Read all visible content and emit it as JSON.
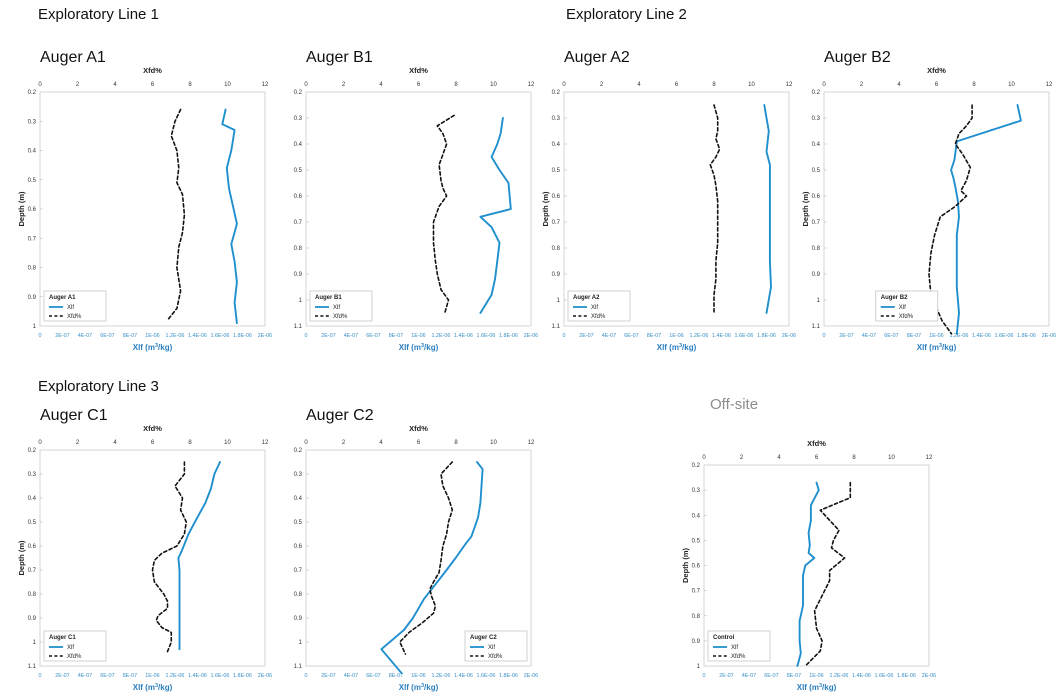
{
  "sections": {
    "line1": "Exploratory Line 1",
    "line2": "Exploratory Line 2",
    "line3": "Exploratory Line 3",
    "offsite": "Off-site"
  },
  "colors": {
    "xlf": "#1f8fce",
    "xfd": "#111111",
    "frame": "#d4d4d4",
    "grid": "#e6e6e6"
  },
  "chart_data": [
    {
      "type": "line",
      "key": "a1",
      "subtitle": "Auger A1",
      "top_axis": {
        "label": "Xfd%",
        "range": [
          0,
          12
        ],
        "ticks": [
          "0",
          "2",
          "4",
          "6",
          "8",
          "10",
          "12"
        ]
      },
      "bottom_axis": {
        "label": "Xlf (m3/kg)",
        "range": [
          0,
          2e-06
        ],
        "ticks": [
          "0",
          "2E-07",
          "4E-07",
          "6E-07",
          "8E-07",
          "1E-06",
          "1.2E-06",
          "1.4E-06",
          "1.6E-06",
          "1.8E-06",
          "2E-06"
        ]
      },
      "y_axis": {
        "label": "Depth (m)",
        "range": [
          0.2,
          1.0
        ],
        "ticks": [
          "0.2",
          "0.3",
          "0.4",
          "0.5",
          "0.6",
          "0.7",
          "0.8",
          "0.9",
          "1"
        ]
      },
      "legend": {
        "title": "Auger A1",
        "items": [
          "Xlf",
          "Xfd%"
        ],
        "position": "bottom-left"
      },
      "series": [
        {
          "name": "Xlf",
          "axis": "bottom",
          "style": "solid",
          "x": [
            1.65e-06,
            1.62e-06,
            1.73e-06,
            1.7e-06,
            1.66e-06,
            1.68e-06,
            1.75e-06,
            1.73e-06,
            1.7e-06,
            1.73e-06,
            1.75e-06,
            1.73e-06,
            1.75e-06
          ],
          "y": [
            0.26,
            0.31,
            0.33,
            0.4,
            0.46,
            0.53,
            0.65,
            0.68,
            0.72,
            0.78,
            0.85,
            0.92,
            0.99
          ]
        },
        {
          "name": "Xfd%",
          "axis": "top",
          "style": "dashed",
          "x": [
            7.5,
            7.2,
            7.0,
            7.3,
            7.4,
            7.3,
            7.6,
            7.7,
            7.6,
            7.4,
            7.3,
            7.5,
            7.3,
            6.8
          ],
          "y": [
            0.26,
            0.3,
            0.35,
            0.4,
            0.46,
            0.51,
            0.55,
            0.62,
            0.68,
            0.73,
            0.8,
            0.88,
            0.94,
            0.98
          ]
        }
      ]
    },
    {
      "type": "line",
      "key": "b1",
      "subtitle": "Auger B1",
      "top_axis": {
        "label": "Xfd%",
        "range": [
          0,
          12
        ],
        "ticks": [
          "0",
          "2",
          "4",
          "6",
          "8",
          "10",
          "12"
        ]
      },
      "bottom_axis": {
        "label": "Xlf (m3/kg)",
        "range": [
          0,
          2e-06
        ],
        "ticks": [
          "0",
          "2E-07",
          "4E-07",
          "6E-07",
          "8E-07",
          "1E-06",
          "1.2E-06",
          "1.4E-06",
          "1.6E-06",
          "1.8E-06",
          "2E-06"
        ]
      },
      "y_axis": {
        "label": "",
        "range": [
          0.2,
          1.1
        ],
        "ticks": [
          "0.2",
          "0.3",
          "0.4",
          "0.5",
          "0.6",
          "0.7",
          "0.8",
          "0.9",
          "1",
          "1.1"
        ]
      },
      "legend": {
        "title": "Auger B1",
        "items": [
          "Xlf",
          "Xfd%"
        ],
        "position": "bottom-left"
      },
      "series": [
        {
          "name": "Xlf",
          "axis": "bottom",
          "style": "solid",
          "x": [
            1.75e-06,
            1.73e-06,
            1.7e-06,
            1.65e-06,
            1.72e-06,
            1.8e-06,
            1.82e-06,
            1.55e-06,
            1.65e-06,
            1.72e-06,
            1.7e-06,
            1.68e-06,
            1.65e-06,
            1.55e-06
          ],
          "y": [
            0.3,
            0.36,
            0.4,
            0.45,
            0.5,
            0.55,
            0.65,
            0.68,
            0.72,
            0.78,
            0.85,
            0.92,
            0.98,
            1.05
          ]
        },
        {
          "name": "Xfd%",
          "axis": "top",
          "style": "dashed",
          "x": [
            7.9,
            7.0,
            7.3,
            7.5,
            7.3,
            7.1,
            7.2,
            7.3,
            7.5,
            7.1,
            6.8,
            6.8,
            6.9,
            7.0,
            7.2,
            7.6,
            7.4
          ],
          "y": [
            0.29,
            0.33,
            0.36,
            0.4,
            0.44,
            0.48,
            0.54,
            0.57,
            0.6,
            0.64,
            0.7,
            0.78,
            0.85,
            0.9,
            0.96,
            1.0,
            1.05
          ]
        }
      ]
    },
    {
      "type": "line",
      "key": "a2",
      "subtitle": "Auger A2",
      "top_axis": {
        "label": "",
        "range": [
          0,
          12
        ],
        "ticks": [
          "0",
          "2",
          "4",
          "6",
          "8",
          "10",
          "12"
        ]
      },
      "bottom_axis": {
        "label": "Xlf (m3/kg)",
        "range": [
          0,
          2e-06
        ],
        "ticks": [
          "0",
          "2E-07",
          "4E-07",
          "6E-07",
          "8E-07",
          "1E-06",
          "1.2E-06",
          "1.4E-06",
          "1.6E-06",
          "1.8E-06",
          "2E-06"
        ]
      },
      "y_axis": {
        "label": "Depth (m)",
        "range": [
          0.2,
          1.1
        ],
        "ticks": [
          "0.2",
          "0.3",
          "0.4",
          "0.5",
          "0.6",
          "0.7",
          "0.8",
          "0.9",
          "1",
          "1.1"
        ]
      },
      "legend": {
        "title": "Auger A2",
        "items": [
          "Xlf",
          "Xfd%"
        ],
        "position": "bottom-left"
      },
      "series": [
        {
          "name": "Xlf",
          "axis": "bottom",
          "style": "solid",
          "x": [
            1.78e-06,
            1.8e-06,
            1.82e-06,
            1.8e-06,
            1.83e-06,
            1.83e-06,
            1.83e-06,
            1.83e-06,
            1.83e-06,
            1.84e-06,
            1.8e-06
          ],
          "y": [
            0.25,
            0.3,
            0.35,
            0.43,
            0.48,
            0.55,
            0.65,
            0.75,
            0.85,
            0.95,
            1.05
          ]
        },
        {
          "name": "Xfd%",
          "axis": "top",
          "style": "dashed",
          "x": [
            8.0,
            8.2,
            8.2,
            8.1,
            8.3,
            8.1,
            7.8,
            8.0,
            8.1,
            8.2,
            8.2,
            8.2,
            8.1,
            8.1,
            8.0,
            8.0
          ],
          "y": [
            0.25,
            0.3,
            0.35,
            0.38,
            0.42,
            0.45,
            0.48,
            0.52,
            0.56,
            0.62,
            0.7,
            0.78,
            0.85,
            0.92,
            0.98,
            1.05
          ]
        }
      ]
    },
    {
      "type": "line",
      "key": "b2",
      "subtitle": "Auger B2",
      "top_axis": {
        "label": "Xfd%",
        "range": [
          0,
          12
        ],
        "ticks": [
          "0",
          "2",
          "4",
          "6",
          "8",
          "10",
          "12"
        ]
      },
      "bottom_axis": {
        "label": "Xlf (m3/kg)",
        "range": [
          0,
          2e-06
        ],
        "ticks": [
          "0",
          "2E-07",
          "4E-07",
          "6E-07",
          "8E-07",
          "1E-06",
          "1.2E-06",
          "1.4E-06",
          "1.6E-06",
          "1.8E-06",
          "2E-06"
        ]
      },
      "y_axis": {
        "label": "Depth (m)",
        "range": [
          0.2,
          1.1
        ],
        "ticks": [
          "0.2",
          "0.3",
          "0.4",
          "0.5",
          "0.6",
          "0.7",
          "0.8",
          "0.9",
          "1",
          "1.1"
        ]
      },
      "legend": {
        "title": "Auger B2",
        "items": [
          "Xlf",
          "Xfd%"
        ],
        "position": "bottom-center"
      },
      "series": [
        {
          "name": "Xlf",
          "axis": "bottom",
          "style": "solid",
          "x": [
            1.72e-06,
            1.75e-06,
            1.18e-06,
            1.16e-06,
            1.13e-06,
            1.15e-06,
            1.17e-06,
            1.19e-06,
            1.2e-06,
            1.18e-06,
            1.18e-06,
            1.18e-06,
            1.19e-06,
            1.2e-06,
            1.18e-06
          ],
          "y": [
            0.25,
            0.31,
            0.39,
            0.46,
            0.5,
            0.53,
            0.57,
            0.62,
            0.68,
            0.75,
            0.85,
            0.95,
            1.0,
            1.05,
            1.13
          ]
        },
        {
          "name": "Xfd%",
          "axis": "top",
          "style": "dashed",
          "x": [
            7.9,
            7.9,
            7.6,
            7.2,
            7.0,
            7.4,
            7.8,
            7.6,
            7.3,
            7.6,
            7.0,
            6.2,
            5.9,
            5.7,
            5.6,
            5.7,
            6.0,
            6.3,
            6.8
          ],
          "y": [
            0.25,
            0.3,
            0.33,
            0.36,
            0.4,
            0.44,
            0.49,
            0.54,
            0.58,
            0.6,
            0.64,
            0.68,
            0.75,
            0.82,
            0.9,
            0.98,
            1.03,
            1.08,
            1.13
          ]
        }
      ]
    },
    {
      "type": "line",
      "key": "c1",
      "subtitle": "Auger C1",
      "top_axis": {
        "label": "Xfd%",
        "range": [
          0,
          12
        ],
        "ticks": [
          "0",
          "2",
          "4",
          "6",
          "8",
          "10",
          "12"
        ]
      },
      "bottom_axis": {
        "label": "Xlf (m3/kg)",
        "range": [
          0,
          2e-06
        ],
        "ticks": [
          "0",
          "2E-07",
          "4E-07",
          "6E-07",
          "8E-07",
          "1E-06",
          "1.2E-06",
          "1.4E-06",
          "1.6E-06",
          "1.8E-06",
          "2E-06"
        ]
      },
      "y_axis": {
        "label": "Depth (m)",
        "range": [
          0.2,
          1.1
        ],
        "ticks": [
          "0.2",
          "0.3",
          "0.4",
          "0.5",
          "0.6",
          "0.7",
          "0.8",
          "0.9",
          "1",
          "1.1"
        ]
      },
      "legend": {
        "title": "Auger C1",
        "items": [
          "Xlf",
          "Xfd%"
        ],
        "position": "bottom-left"
      },
      "series": [
        {
          "name": "Xlf",
          "axis": "bottom",
          "style": "solid",
          "x": [
            1.6e-06,
            1.55e-06,
            1.52e-06,
            1.47e-06,
            1.4e-06,
            1.32e-06,
            1.26e-06,
            1.23e-06,
            1.24e-06,
            1.24e-06,
            1.24e-06,
            1.24e-06,
            1.24e-06
          ],
          "y": [
            0.25,
            0.3,
            0.36,
            0.42,
            0.48,
            0.55,
            0.62,
            0.65,
            0.7,
            0.78,
            0.85,
            0.95,
            1.03
          ]
        },
        {
          "name": "Xfd%",
          "axis": "top",
          "style": "dashed",
          "x": [
            7.7,
            7.7,
            7.2,
            7.6,
            7.5,
            7.8,
            7.7,
            7.3,
            6.5,
            6.1,
            6.0,
            6.1,
            6.6,
            6.8,
            6.8,
            6.3,
            6.2,
            6.5,
            7.0,
            7.0,
            6.8
          ],
          "y": [
            0.25,
            0.3,
            0.35,
            0.4,
            0.45,
            0.5,
            0.55,
            0.6,
            0.63,
            0.66,
            0.7,
            0.75,
            0.8,
            0.83,
            0.86,
            0.89,
            0.91,
            0.94,
            0.96,
            1.0,
            1.04
          ]
        }
      ]
    },
    {
      "type": "line",
      "key": "c2",
      "subtitle": "Auger C2",
      "top_axis": {
        "label": "Xfd%",
        "range": [
          0,
          12
        ],
        "ticks": [
          "0",
          "2",
          "4",
          "6",
          "8",
          "10",
          "12"
        ]
      },
      "bottom_axis": {
        "label": "Xlf (m3/kg)",
        "range": [
          0,
          2e-06
        ],
        "ticks": [
          "0",
          "2E-07",
          "4E-07",
          "6E-07",
          "8E-07",
          "1E-06",
          "1.2E-06",
          "1.4E-06",
          "1.6E-06",
          "1.8E-06",
          "2E-06"
        ]
      },
      "y_axis": {
        "label": "",
        "range": [
          0.2,
          1.1
        ],
        "ticks": [
          "0.2",
          "0.3",
          "0.4",
          "0.5",
          "0.6",
          "0.7",
          "0.8",
          "0.9",
          "1",
          "1.1"
        ]
      },
      "legend": {
        "title": "Auger C2",
        "items": [
          "Xlf",
          "Xfd%"
        ],
        "position": "bottom-right"
      },
      "series": [
        {
          "name": "Xlf",
          "axis": "bottom",
          "style": "solid",
          "x": [
            1.52e-06,
            1.57e-06,
            1.56e-06,
            1.55e-06,
            1.53e-06,
            1.5e-06,
            1.47e-06,
            1.42e-06,
            1.33e-06,
            1.25e-06,
            1.15e-06,
            1.05e-06,
            9.5e-07,
            8.7e-07,
            6.7e-07,
            8.5e-07
          ],
          "y": [
            0.25,
            0.28,
            0.35,
            0.42,
            0.48,
            0.52,
            0.56,
            0.59,
            0.65,
            0.7,
            0.76,
            0.82,
            0.9,
            0.95,
            1.03,
            1.13
          ]
        },
        {
          "name": "Xfd%",
          "axis": "top",
          "style": "dashed",
          "x": [
            7.8,
            7.2,
            7.3,
            7.6,
            7.8,
            7.6,
            7.5,
            7.3,
            7.2,
            7.1,
            6.8,
            6.6,
            6.7,
            6.9,
            6.8,
            6.2,
            5.5,
            5.0,
            5.3
          ],
          "y": [
            0.25,
            0.3,
            0.35,
            0.4,
            0.45,
            0.5,
            0.55,
            0.6,
            0.66,
            0.71,
            0.75,
            0.78,
            0.81,
            0.85,
            0.88,
            0.92,
            0.96,
            1.0,
            1.05
          ]
        }
      ]
    },
    {
      "type": "line",
      "key": "control",
      "subtitle": "",
      "top_axis": {
        "label": "Xfd%",
        "range": [
          0,
          12
        ],
        "ticks": [
          "0",
          "2",
          "4",
          "6",
          "8",
          "10",
          "12"
        ]
      },
      "bottom_axis": {
        "label": "Xlf (m3/kg)",
        "range": [
          0,
          2e-06
        ],
        "ticks": [
          "0",
          "2E-07",
          "4E-07",
          "6E-07",
          "8E-07",
          "1E-06",
          "1.2E-06",
          "1.4E-06",
          "1.6E-06",
          "1.8E-06",
          "2E-06"
        ]
      },
      "y_axis": {
        "label": "Depth (m)",
        "range": [
          0.2,
          1.0
        ],
        "ticks": [
          "0.2",
          "0.3",
          "0.4",
          "0.5",
          "0.6",
          "0.7",
          "0.8",
          "0.9",
          "1"
        ]
      },
      "legend": {
        "title": "Control",
        "items": [
          "Xlf",
          "Xfd%"
        ],
        "position": "bottom-left"
      },
      "series": [
        {
          "name": "Xlf",
          "axis": "bottom",
          "style": "solid",
          "x": [
            1e-06,
            1.02e-06,
            9.5e-07,
            9.5e-07,
            9.3e-07,
            9.4e-07,
            9.3e-07,
            9.8e-07,
            9e-07,
            8.8e-07,
            8.8e-07,
            8.8e-07,
            8.5e-07,
            8.5e-07,
            8.6e-07,
            8.3e-07
          ],
          "y": [
            0.27,
            0.3,
            0.36,
            0.42,
            0.47,
            0.52,
            0.55,
            0.57,
            0.6,
            0.64,
            0.7,
            0.76,
            0.82,
            0.9,
            0.95,
            1.0
          ]
        },
        {
          "name": "Xfd%",
          "axis": "top",
          "style": "dashed",
          "x": [
            7.8,
            7.8,
            6.2,
            6.7,
            7.2,
            6.9,
            6.8,
            7.5,
            6.7,
            6.7,
            6.3,
            5.9,
            6.0,
            6.3,
            6.2,
            5.8,
            5.4
          ],
          "y": [
            0.27,
            0.33,
            0.38,
            0.42,
            0.46,
            0.5,
            0.53,
            0.57,
            0.62,
            0.66,
            0.72,
            0.78,
            0.85,
            0.9,
            0.94,
            0.97,
            1.0
          ]
        }
      ]
    }
  ]
}
